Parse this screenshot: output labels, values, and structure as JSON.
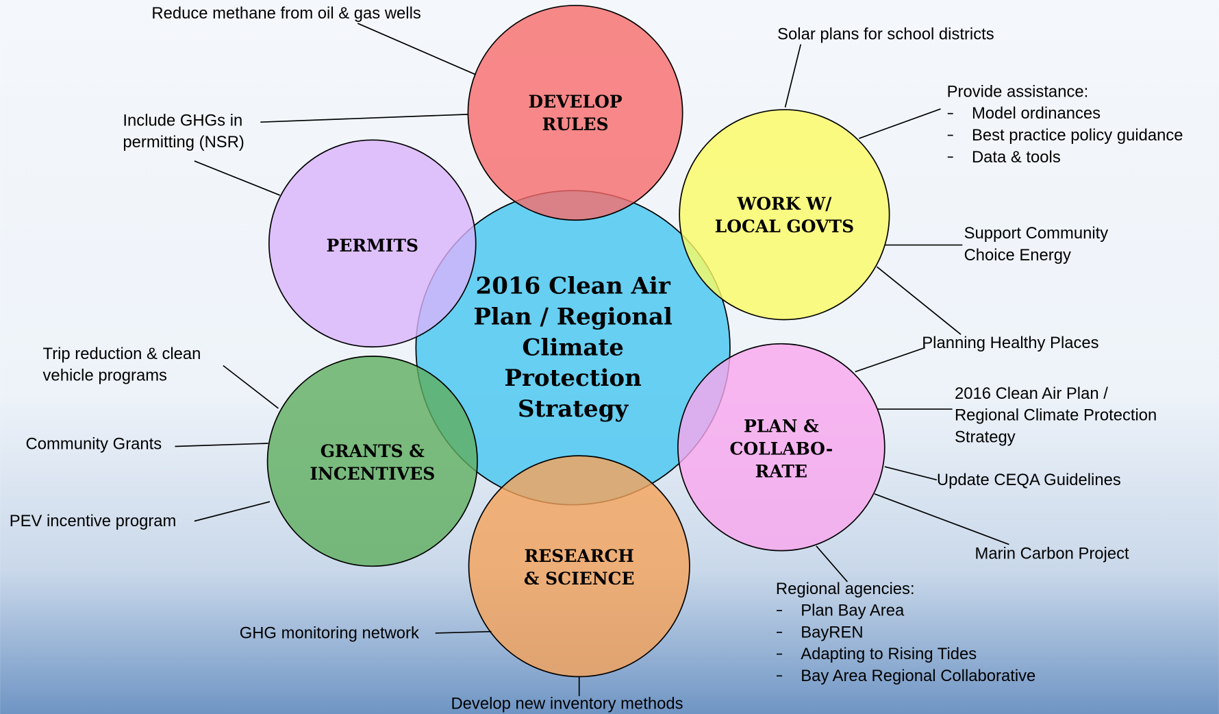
{
  "center": {
    "lines": [
      "2016 Clean Air",
      "Plan / Regional",
      "Climate",
      "Protection",
      "Strategy"
    ]
  },
  "nodes": [
    {
      "lines": [
        "DEVELOP",
        "RULES"
      ],
      "callouts": [
        {
          "lines": [
            "Reduce methane from oil & gas wells"
          ]
        }
      ]
    },
    {
      "lines": [
        "PERMITS"
      ],
      "callouts": [
        {
          "lines": [
            "Include GHGs in",
            "permitting (NSR)"
          ]
        }
      ]
    },
    {
      "lines": [
        "WORK W/",
        "LOCAL GOVTS"
      ],
      "callouts": [
        {
          "lines": [
            "Solar plans for school districts"
          ]
        },
        {
          "lines": [
            "Provide assistance:"
          ],
          "items": [
            "Model ordinances",
            "Best practice policy guidance",
            "Data & tools"
          ]
        },
        {
          "lines": [
            "Support Community",
            "Choice Energy"
          ]
        }
      ]
    },
    {
      "lines": [
        "PLAN &",
        "COLLABO-",
        "RATE"
      ],
      "callouts": [
        {
          "lines": [
            "Planning Healthy Places"
          ]
        },
        {
          "lines": [
            "2016 Clean Air Plan /",
            "Regional Climate Protection",
            "Strategy"
          ]
        },
        {
          "lines": [
            "Update CEQA Guidelines"
          ]
        },
        {
          "lines": [
            "Marin Carbon Project"
          ]
        },
        {
          "lines": [
            "Regional agencies:"
          ],
          "items": [
            "Plan Bay Area",
            "BayREN",
            "Adapting to Rising Tides",
            "Bay Area Regional Collaborative"
          ]
        }
      ]
    },
    {
      "lines": [
        "RESEARCH",
        "& SCIENCE"
      ],
      "callouts": [
        {
          "lines": [
            "GHG monitoring network"
          ]
        },
        {
          "lines": [
            "Develop new inventory methods"
          ]
        }
      ]
    },
    {
      "lines": [
        "GRANTS &",
        "INCENTIVES"
      ],
      "callouts": [
        {
          "lines": [
            "Trip reduction & clean",
            "vehicle programs"
          ]
        },
        {
          "lines": [
            "Community Grants"
          ]
        },
        {
          "lines": [
            "PEV incentive program"
          ]
        }
      ]
    }
  ]
}
